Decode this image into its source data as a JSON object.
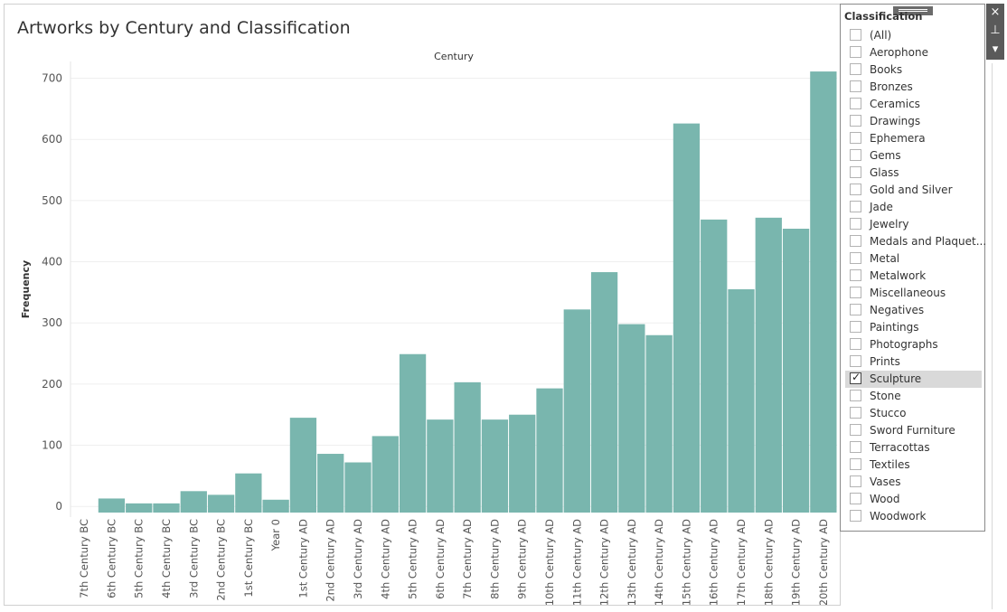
{
  "title": "Artworks by Century and Classification",
  "colors": {
    "bar": "#79b6ae",
    "grid": "#efefef",
    "axis_text": "#555555"
  },
  "chart_data": {
    "type": "bar",
    "title": "Artworks by Century and Classification",
    "column_header": "Century",
    "ylabel": "Frequency",
    "ylim": [
      -10,
      720
    ],
    "yticks": [
      0,
      100,
      200,
      300,
      400,
      500,
      600,
      700
    ],
    "grid": true,
    "categories": [
      "7th Century BC",
      "6th Century BC",
      "5th Century BC",
      "4th Century BC",
      "3rd Century BC",
      "2nd Century BC",
      "1st Century BC",
      "Year 0",
      "1st Century AD",
      "2nd Century AD",
      "3rd Century AD",
      "4th Century AD",
      "5th Century AD",
      "6th Century AD",
      "7th Century AD",
      "8th Century AD",
      "9th Century AD",
      "10th Century AD",
      "11th Century AD",
      "12th Century AD",
      "13th Century AD",
      "14th Century AD",
      "15th Century AD",
      "16th Century AD",
      "17th Century AD",
      "18th Century AD",
      "19th Century AD",
      "20th Century AD"
    ],
    "values": [
      0,
      13,
      5,
      5,
      25,
      19,
      54,
      11,
      145,
      86,
      72,
      115,
      249,
      142,
      203,
      142,
      150,
      193,
      322,
      383,
      298,
      280,
      626,
      469,
      355,
      472,
      454,
      711
    ]
  },
  "filter": {
    "title": "Classification",
    "items": [
      {
        "label": "(All)",
        "checked": false
      },
      {
        "label": "Aerophone",
        "checked": false
      },
      {
        "label": "Books",
        "checked": false
      },
      {
        "label": "Bronzes",
        "checked": false
      },
      {
        "label": "Ceramics",
        "checked": false
      },
      {
        "label": "Drawings",
        "checked": false
      },
      {
        "label": "Ephemera",
        "checked": false
      },
      {
        "label": "Gems",
        "checked": false
      },
      {
        "label": "Glass",
        "checked": false
      },
      {
        "label": "Gold and Silver",
        "checked": false
      },
      {
        "label": "Jade",
        "checked": false
      },
      {
        "label": "Jewelry",
        "checked": false
      },
      {
        "label": "Medals and Plaquet...",
        "checked": false
      },
      {
        "label": "Metal",
        "checked": false
      },
      {
        "label": "Metalwork",
        "checked": false
      },
      {
        "label": "Miscellaneous",
        "checked": false
      },
      {
        "label": "Negatives",
        "checked": false
      },
      {
        "label": "Paintings",
        "checked": false
      },
      {
        "label": "Photographs",
        "checked": false
      },
      {
        "label": "Prints",
        "checked": false
      },
      {
        "label": "Sculpture",
        "checked": true
      },
      {
        "label": "Stone",
        "checked": false
      },
      {
        "label": "Stucco",
        "checked": false
      },
      {
        "label": "Sword Furniture",
        "checked": false
      },
      {
        "label": "Terracottas",
        "checked": false
      },
      {
        "label": "Textiles",
        "checked": false
      },
      {
        "label": "Vases",
        "checked": false
      },
      {
        "label": "Wood",
        "checked": false
      },
      {
        "label": "Woodwork",
        "checked": false
      }
    ]
  },
  "tools": {
    "close_icon": "×",
    "pin_icon": "⊥",
    "menu_icon": "▾"
  }
}
